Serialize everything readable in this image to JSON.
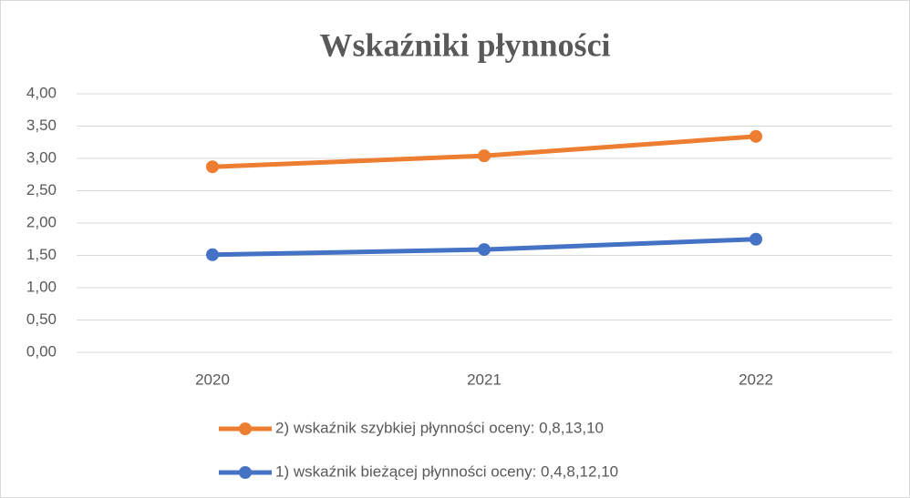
{
  "chart_data": {
    "type": "line",
    "title": "Wskaźniki płynności",
    "categories": [
      "2020",
      "2021",
      "2022"
    ],
    "series": [
      {
        "name": "2) wskaźnik szybkiej płynności oceny: 0,8,13,10",
        "color": "#ed7d31",
        "values": [
          2.87,
          3.04,
          3.34
        ]
      },
      {
        "name": "1) wskaźnik bieżącej płynności oceny: 0,4,8,12,10",
        "color": "#4472c4",
        "values": [
          1.51,
          1.59,
          1.75
        ]
      }
    ],
    "ylim": [
      0,
      4
    ],
    "yticks": [
      {
        "value": 0,
        "label": "0,00"
      },
      {
        "value": 0.5,
        "label": "0,50"
      },
      {
        "value": 1,
        "label": "1,00"
      },
      {
        "value": 1.5,
        "label": "1,50"
      },
      {
        "value": 2,
        "label": "2,00"
      },
      {
        "value": 2.5,
        "label": "2,50"
      },
      {
        "value": 3,
        "label": "3,00"
      },
      {
        "value": 3.5,
        "label": "3,50"
      },
      {
        "value": 4,
        "label": "4,00"
      }
    ],
    "grid": true,
    "legend": "bottom"
  }
}
